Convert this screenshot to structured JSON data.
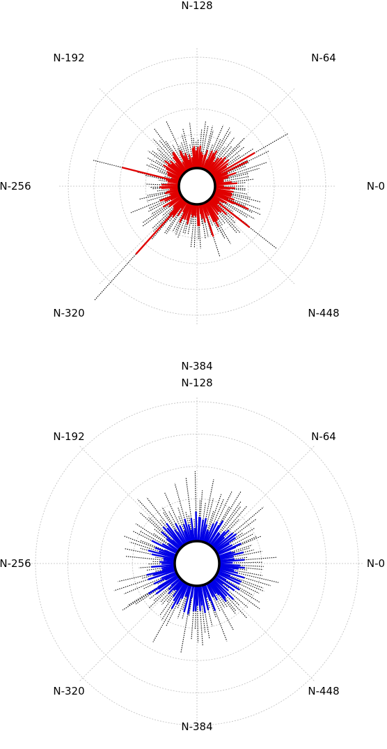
{
  "chart_data": [
    {
      "type": "polar-bar",
      "angle_labels": [
        "N-0",
        "N-64",
        "N-128",
        "N-192",
        "N-256",
        "N-320",
        "N-384",
        "N-448"
      ],
      "grid": true,
      "bar_color": "#e00000",
      "whisker_color": "#000000",
      "bars_total": 512,
      "outliers": [
        {
          "angle_deg": 30,
          "bar": 70,
          "whisker": 125
        },
        {
          "angle_deg": 26,
          "bar": 55,
          "whisker": 90
        },
        {
          "angle_deg": 166,
          "bar": 85,
          "whisker": 128
        },
        {
          "angle_deg": 228,
          "bar": 105,
          "whisker": 195
        },
        {
          "angle_deg": 322,
          "bar": 70,
          "whisker": 120
        },
        {
          "angle_deg": 336,
          "bar": 55,
          "whisker": 75
        },
        {
          "angle_deg": 288,
          "bar": 50,
          "whisker": 80
        },
        {
          "angle_deg": 298,
          "bar": 40,
          "whisker": 60
        }
      ]
    },
    {
      "type": "polar-bar",
      "angle_labels": [
        "N-0",
        "N-64",
        "N-128",
        "N-192",
        "N-256",
        "N-320",
        "N-384",
        "N-448"
      ],
      "grid": true,
      "bar_color": "#0000e6",
      "whisker_color": "#000000",
      "bars_total": 512,
      "outliers": [
        {
          "angle_deg": 212,
          "bar": 40,
          "whisker": 75
        }
      ]
    }
  ]
}
